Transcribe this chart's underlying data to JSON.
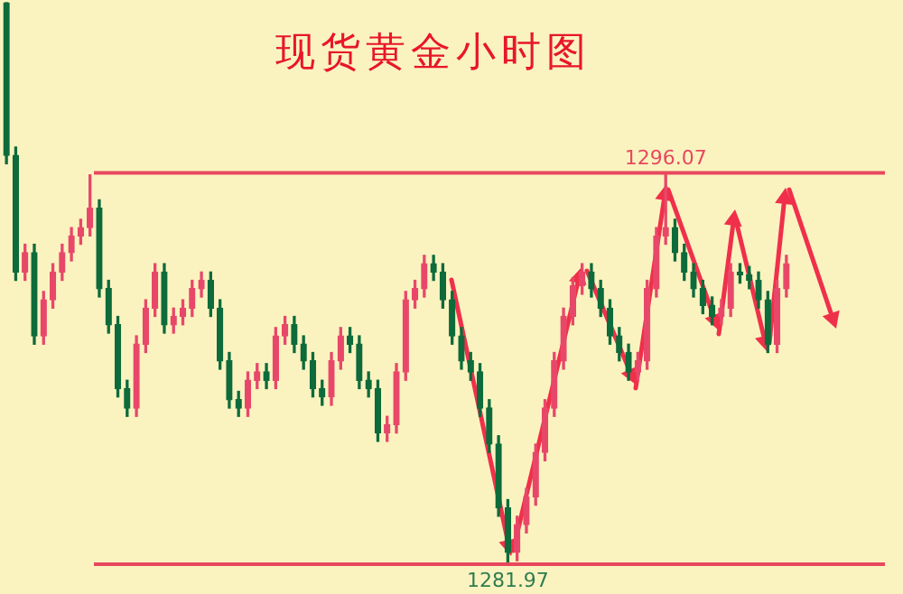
{
  "chart_data": {
    "type": "candlestick",
    "title": "现货黄金小时图",
    "categories": [
      null,
      null,
      null,
      null,
      null,
      null,
      null,
      null,
      null,
      null,
      null,
      null,
      null,
      null,
      null,
      null,
      null,
      null,
      null,
      null,
      null,
      null,
      null,
      null,
      null,
      null,
      null,
      null,
      null,
      null,
      null,
      null,
      null,
      null,
      null,
      null,
      null,
      null,
      null,
      null,
      null,
      null,
      null,
      null,
      null,
      null,
      null,
      null,
      null,
      null,
      null,
      null,
      null,
      null,
      null,
      null,
      null,
      null,
      null,
      null,
      null,
      null,
      null,
      null,
      null,
      null,
      null,
      null,
      null,
      null,
      null,
      null,
      null,
      null,
      null,
      null,
      null,
      null,
      null,
      null,
      null,
      null,
      null,
      null,
      null
    ],
    "ohlc": [
      [
        1302.2,
        1302.2,
        1296.4,
        1296.7
      ],
      [
        1296.7,
        1297.0,
        1292.2,
        1292.5
      ],
      [
        1292.5,
        1293.5,
        1292.2,
        1293.2
      ],
      [
        1293.2,
        1293.5,
        1289.9,
        1290.2
      ],
      [
        1290.2,
        1291.8,
        1289.9,
        1291.5
      ],
      [
        1291.5,
        1292.8,
        1291.2,
        1292.5
      ],
      [
        1292.5,
        1293.5,
        1292.2,
        1293.2
      ],
      [
        1293.2,
        1294.1,
        1292.9,
        1293.8
      ],
      [
        1293.8,
        1294.4,
        1293.5,
        1294.1
      ],
      [
        1294.1,
        1296.0,
        1293.8,
        1294.8
      ],
      [
        1294.8,
        1295.1,
        1291.6,
        1291.9
      ],
      [
        1291.9,
        1292.2,
        1290.3,
        1290.6
      ],
      [
        1290.6,
        1290.9,
        1288.0,
        1288.3
      ],
      [
        1288.3,
        1288.6,
        1287.3,
        1287.6
      ],
      [
        1287.6,
        1290.2,
        1287.3,
        1289.9
      ],
      [
        1289.9,
        1291.5,
        1289.6,
        1291.2
      ],
      [
        1291.2,
        1292.8,
        1290.9,
        1292.5
      ],
      [
        1292.5,
        1292.8,
        1290.3,
        1290.6
      ],
      [
        1290.6,
        1291.2,
        1290.3,
        1290.9
      ],
      [
        1290.9,
        1291.5,
        1290.6,
        1291.2
      ],
      [
        1291.2,
        1292.2,
        1290.9,
        1291.9
      ],
      [
        1291.9,
        1292.5,
        1291.6,
        1292.2
      ],
      [
        1292.2,
        1292.5,
        1290.9,
        1291.2
      ],
      [
        1291.2,
        1291.5,
        1289.0,
        1289.3
      ],
      [
        1289.3,
        1289.6,
        1287.6,
        1287.9
      ],
      [
        1287.9,
        1288.2,
        1287.3,
        1287.6
      ],
      [
        1287.6,
        1288.9,
        1287.3,
        1288.6
      ],
      [
        1288.6,
        1289.2,
        1288.3,
        1288.9
      ],
      [
        1288.9,
        1289.2,
        1288.3,
        1288.6
      ],
      [
        1288.6,
        1290.5,
        1288.3,
        1290.2
      ],
      [
        1290.2,
        1290.9,
        1289.9,
        1290.6
      ],
      [
        1290.6,
        1290.9,
        1289.6,
        1289.9
      ],
      [
        1289.9,
        1290.2,
        1289.0,
        1289.3
      ],
      [
        1289.3,
        1289.6,
        1288.0,
        1288.3
      ],
      [
        1288.3,
        1288.6,
        1287.7,
        1288.0
      ],
      [
        1288.0,
        1289.6,
        1287.7,
        1289.3
      ],
      [
        1289.3,
        1290.5,
        1289.0,
        1290.2
      ],
      [
        1290.2,
        1290.5,
        1289.6,
        1289.9
      ],
      [
        1289.9,
        1290.2,
        1288.3,
        1288.6
      ],
      [
        1288.6,
        1288.9,
        1288.0,
        1288.3
      ],
      [
        1288.3,
        1288.6,
        1286.4,
        1286.7
      ],
      [
        1286.7,
        1287.3,
        1286.4,
        1287.0
      ],
      [
        1287.0,
        1289.2,
        1286.7,
        1288.9
      ],
      [
        1288.9,
        1291.8,
        1288.6,
        1291.5
      ],
      [
        1291.5,
        1292.2,
        1291.2,
        1291.9
      ],
      [
        1291.9,
        1293.1,
        1291.6,
        1292.8
      ],
      [
        1292.8,
        1293.1,
        1292.2,
        1292.5
      ],
      [
        1292.5,
        1292.8,
        1291.2,
        1291.5
      ],
      [
        1291.5,
        1291.8,
        1289.9,
        1290.2
      ],
      [
        1290.2,
        1290.5,
        1289.0,
        1289.3
      ],
      [
        1289.3,
        1289.6,
        1288.6,
        1288.9
      ],
      [
        1288.9,
        1289.2,
        1287.3,
        1287.6
      ],
      [
        1287.6,
        1287.9,
        1286.0,
        1286.3
      ],
      [
        1286.3,
        1286.6,
        1283.7,
        1284.0
      ],
      [
        1284.0,
        1284.3,
        1281.97,
        1282.4
      ],
      [
        1282.4,
        1283.7,
        1282.1,
        1283.4
      ],
      [
        1283.4,
        1284.7,
        1283.1,
        1284.4
      ],
      [
        1284.4,
        1286.3,
        1284.1,
        1286.0
      ],
      [
        1286.0,
        1287.9,
        1285.7,
        1287.6
      ],
      [
        1287.6,
        1289.6,
        1287.3,
        1289.3
      ],
      [
        1289.3,
        1291.2,
        1289.0,
        1290.9
      ],
      [
        1290.9,
        1292.3,
        1290.6,
        1292.0
      ],
      [
        1292.0,
        1292.8,
        1291.7,
        1292.5
      ],
      [
        1292.5,
        1292.8,
        1291.6,
        1291.9
      ],
      [
        1291.9,
        1292.2,
        1290.9,
        1291.2
      ],
      [
        1291.2,
        1291.5,
        1289.9,
        1290.2
      ],
      [
        1290.2,
        1290.5,
        1289.3,
        1289.6
      ],
      [
        1289.6,
        1289.9,
        1288.6,
        1288.9
      ],
      [
        1288.9,
        1289.6,
        1288.6,
        1289.3
      ],
      [
        1289.3,
        1292.2,
        1289.0,
        1291.9
      ],
      [
        1291.9,
        1294.1,
        1291.6,
        1293.8
      ],
      [
        1293.8,
        1296.07,
        1293.5,
        1294.1
      ],
      [
        1294.1,
        1294.4,
        1292.9,
        1293.2
      ],
      [
        1293.2,
        1293.5,
        1292.2,
        1292.5
      ],
      [
        1292.5,
        1292.8,
        1291.6,
        1291.9
      ],
      [
        1291.9,
        1292.2,
        1291.0,
        1291.3
      ],
      [
        1291.3,
        1291.6,
        1290.6,
        1290.9
      ],
      [
        1290.9,
        1291.5,
        1290.6,
        1291.2
      ],
      [
        1291.2,
        1292.8,
        1290.9,
        1292.5
      ],
      [
        1292.5,
        1292.8,
        1292.1,
        1292.4
      ],
      [
        1292.4,
        1292.7,
        1291.9,
        1292.2
      ],
      [
        1292.2,
        1292.5,
        1291.2,
        1291.5
      ],
      [
        1291.5,
        1291.8,
        1289.6,
        1289.9
      ],
      [
        1289.9,
        1292.2,
        1289.6,
        1291.9
      ],
      [
        1291.9,
        1293.1,
        1291.6,
        1292.8
      ]
    ],
    "ylim": [
      1280.9,
      1302.3
    ],
    "ref_lines": [
      {
        "axis": "y",
        "value": 1296.07,
        "label": "1296.07",
        "color": "#e8485e"
      },
      {
        "axis": "y",
        "value": 1281.97,
        "label": "1281.97",
        "color": "#e8485e"
      }
    ],
    "legend": false
  }
}
